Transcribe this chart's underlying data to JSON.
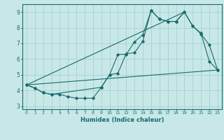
{
  "title": "",
  "xlabel": "Humidex (Indice chaleur)",
  "xlim": [
    -0.5,
    23.5
  ],
  "ylim": [
    2.8,
    9.5
  ],
  "xticks": [
    0,
    1,
    2,
    3,
    4,
    5,
    6,
    7,
    8,
    9,
    10,
    11,
    12,
    13,
    14,
    15,
    16,
    17,
    18,
    19,
    20,
    21,
    22,
    23
  ],
  "yticks": [
    3,
    4,
    5,
    6,
    7,
    8,
    9
  ],
  "background_color": "#c8e8e8",
  "grid_color": "#a8d0d0",
  "line_color": "#1a6b6b",
  "line1_x": [
    0,
    1,
    2,
    3,
    4,
    5,
    6,
    7,
    8,
    9,
    10,
    11,
    12,
    13,
    14,
    15,
    16,
    17,
    18,
    19,
    20,
    21,
    22,
    23
  ],
  "line1_y": [
    4.35,
    4.15,
    3.85,
    3.75,
    3.75,
    3.6,
    3.5,
    3.5,
    3.5,
    4.2,
    5.0,
    6.3,
    6.3,
    7.1,
    7.55,
    9.1,
    8.55,
    8.4,
    8.4,
    9.0,
    8.1,
    7.6,
    6.9,
    5.3
  ],
  "line2_x": [
    0,
    1,
    2,
    3,
    9,
    10,
    11,
    12,
    13,
    14,
    15,
    16,
    17,
    18,
    19,
    20,
    21,
    22,
    23
  ],
  "line2_y": [
    4.35,
    4.15,
    3.85,
    3.75,
    4.2,
    5.0,
    5.1,
    6.35,
    6.4,
    7.15,
    9.1,
    8.55,
    8.4,
    8.4,
    9.0,
    8.1,
    7.65,
    5.85,
    5.3
  ],
  "line3_x": [
    0,
    23
  ],
  "line3_y": [
    4.35,
    5.3
  ],
  "line4_x": [
    0,
    19
  ],
  "line4_y": [
    4.35,
    9.0
  ]
}
